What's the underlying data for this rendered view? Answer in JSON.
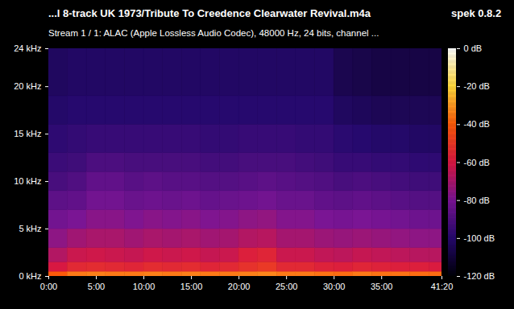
{
  "chart_data": {
    "type": "heatmap",
    "title": "...l 8-track UK 1973/Tribute To Creedence Clearwater Revival.m4a",
    "annotation": "spek 0.8.2",
    "subtitle": "Stream 1 / 1: ALAC (Apple Lossless Audio Codec), 48000 Hz, 24 bits, channel ...",
    "x_bins": [
      0,
      120,
      240,
      360,
      480,
      600,
      720,
      840,
      960,
      1080,
      1200,
      1320,
      1440,
      1560,
      1680,
      1800,
      1920,
      2040,
      2160,
      2280,
      2400,
      2480
    ],
    "y_bins": [
      0,
      0.5,
      1.5,
      3,
      5,
      7,
      9,
      11,
      13,
      16,
      19,
      24
    ],
    "cells": [
      [
        -40,
        -60,
        -68,
        -76,
        -82,
        -87,
        -92,
        -95,
        -98,
        -101,
        -103
      ],
      [
        -35,
        -55,
        -63,
        -72,
        -80,
        -86,
        -90,
        -94,
        -97,
        -100,
        -102
      ],
      [
        -34,
        -54,
        -62,
        -70,
        -77,
        -82,
        -86,
        -91,
        -96,
        -100,
        -102
      ],
      [
        -35,
        -55,
        -63,
        -70,
        -77,
        -82,
        -86,
        -91,
        -96,
        -100,
        -102
      ],
      [
        -35,
        -56,
        -64,
        -72,
        -79,
        -84,
        -88,
        -92,
        -96,
        -100,
        -102
      ],
      [
        -34,
        -54,
        -62,
        -70,
        -77,
        -83,
        -87,
        -92,
        -96,
        -100,
        -102
      ],
      [
        -35,
        -55,
        -63,
        -71,
        -78,
        -84,
        -88,
        -92,
        -96,
        -100,
        -102
      ],
      [
        -34,
        -54,
        -62,
        -70,
        -77,
        -83,
        -88,
        -92,
        -96,
        -100,
        -102
      ],
      [
        -35,
        -56,
        -64,
        -72,
        -79,
        -85,
        -89,
        -93,
        -97,
        -100,
        -102
      ],
      [
        -35,
        -55,
        -63,
        -71,
        -78,
        -84,
        -89,
        -93,
        -97,
        -100,
        -102
      ],
      [
        -34,
        -52,
        -58,
        -68,
        -76,
        -83,
        -88,
        -92,
        -96,
        -100,
        -102
      ],
      [
        -33,
        -50,
        -56,
        -67,
        -75,
        -82,
        -87,
        -92,
        -96,
        -100,
        -102
      ],
      [
        -35,
        -55,
        -63,
        -71,
        -78,
        -84,
        -88,
        -92,
        -96,
        -100,
        -102
      ],
      [
        -35,
        -55,
        -63,
        -71,
        -78,
        -84,
        -89,
        -93,
        -97,
        -100,
        -102
      ],
      [
        -36,
        -57,
        -65,
        -73,
        -80,
        -86,
        -90,
        -94,
        -97,
        -100,
        -102
      ],
      [
        -37,
        -58,
        -66,
        -74,
        -81,
        -87,
        -92,
        -96,
        -99,
        -103,
        -106
      ],
      [
        -35,
        -56,
        -64,
        -73,
        -80,
        -86,
        -91,
        -96,
        -100,
        -104,
        -107
      ],
      [
        -36,
        -57,
        -65,
        -74,
        -81,
        -87,
        -92,
        -97,
        -101,
        -105,
        -108
      ],
      [
        -36,
        -58,
        -66,
        -75,
        -82,
        -88,
        -93,
        -97,
        -101,
        -105,
        -108
      ],
      [
        -37,
        -58,
        -67,
        -76,
        -83,
        -89,
        -94,
        -98,
        -102,
        -105,
        -108
      ],
      [
        -37,
        -59,
        -67,
        -76,
        -83,
        -89,
        -94,
        -98,
        -102,
        -105,
        -108
      ]
    ],
    "xlim": [
      0,
      2480
    ],
    "xticks": [
      {
        "value": 0,
        "label": "0:00"
      },
      {
        "value": 300,
        "label": "5:00"
      },
      {
        "value": 600,
        "label": "10:00"
      },
      {
        "value": 900,
        "label": "15:00"
      },
      {
        "value": 1200,
        "label": "20:00"
      },
      {
        "value": 1500,
        "label": "25:00"
      },
      {
        "value": 1800,
        "label": "30:00"
      },
      {
        "value": 2100,
        "label": "35:00"
      },
      {
        "value": 2480,
        "label": "41:20"
      }
    ],
    "ylim": [
      0,
      24
    ],
    "yticks": [
      {
        "value": 0,
        "label": "0 kHz"
      },
      {
        "value": 5,
        "label": "5 kHz"
      },
      {
        "value": 10,
        "label": "10 kHz"
      },
      {
        "value": 15,
        "label": "15 kHz"
      },
      {
        "value": 20,
        "label": "20 kHz"
      },
      {
        "value": 24,
        "label": "24 kHz"
      }
    ],
    "colorbar": {
      "range": [
        -120,
        0
      ],
      "ticks": [
        {
          "value": 0,
          "label": "0 dB"
        },
        {
          "value": -20,
          "label": "-20 dB"
        },
        {
          "value": -40,
          "label": "-40 dB"
        },
        {
          "value": -60,
          "label": "-60 dB"
        },
        {
          "value": -80,
          "label": "-80 dB"
        },
        {
          "value": -100,
          "label": "-100 dB"
        },
        {
          "value": -120,
          "label": "-120 dB"
        }
      ]
    }
  }
}
